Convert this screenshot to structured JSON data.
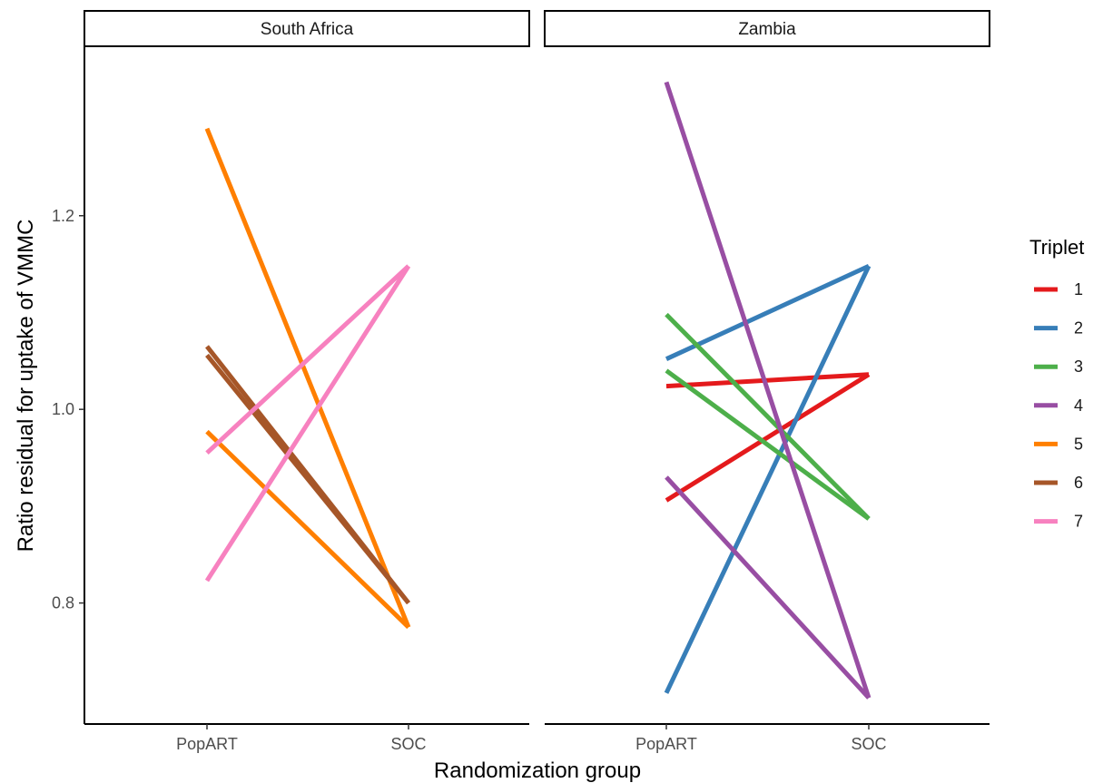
{
  "chart_data": {
    "type": "line",
    "xlabel": "Randomization group",
    "ylabel": "Ratio residual for uptake of VMMC",
    "categories": [
      "PopART",
      "SOC"
    ],
    "yticks": [
      0.8,
      1.0,
      1.2
    ],
    "ylim": [
      0.675,
      1.375
    ],
    "legend": {
      "title": "Triplet",
      "placement": "right",
      "entries": [
        {
          "label": "1",
          "color": "#e41a1c"
        },
        {
          "label": "2",
          "color": "#377eb8"
        },
        {
          "label": "3",
          "color": "#4daf4a"
        },
        {
          "label": "4",
          "color": "#984ea3"
        },
        {
          "label": "5",
          "color": "#ff7f00"
        },
        {
          "label": "6",
          "color": "#a65628"
        },
        {
          "label": "7",
          "color": "#f781bf"
        }
      ]
    },
    "panels": [
      {
        "title": "South Africa",
        "lines": [
          {
            "triplet": "5",
            "values": [
              1.29,
              0.775
            ]
          },
          {
            "triplet": "5",
            "values": [
              0.977,
              0.775
            ]
          },
          {
            "triplet": "6",
            "values": [
              1.065,
              0.8
            ]
          },
          {
            "triplet": "6",
            "values": [
              1.056,
              0.8
            ]
          },
          {
            "triplet": "7",
            "values": [
              0.955,
              1.148
            ]
          },
          {
            "triplet": "7",
            "values": [
              0.823,
              1.148
            ]
          }
        ]
      },
      {
        "title": "Zambia",
        "lines": [
          {
            "triplet": "1",
            "values": [
              1.024,
              1.036
            ]
          },
          {
            "triplet": "1",
            "values": [
              0.906,
              1.036
            ]
          },
          {
            "triplet": "2",
            "values": [
              1.052,
              1.148
            ]
          },
          {
            "triplet": "2",
            "values": [
              0.707,
              1.148
            ]
          },
          {
            "triplet": "3",
            "values": [
              1.098,
              0.887
            ]
          },
          {
            "triplet": "3",
            "values": [
              1.04,
              0.887
            ]
          },
          {
            "triplet": "4",
            "values": [
              1.338,
              0.702
            ]
          },
          {
            "triplet": "4",
            "values": [
              0.93,
              0.702
            ]
          }
        ]
      }
    ]
  }
}
